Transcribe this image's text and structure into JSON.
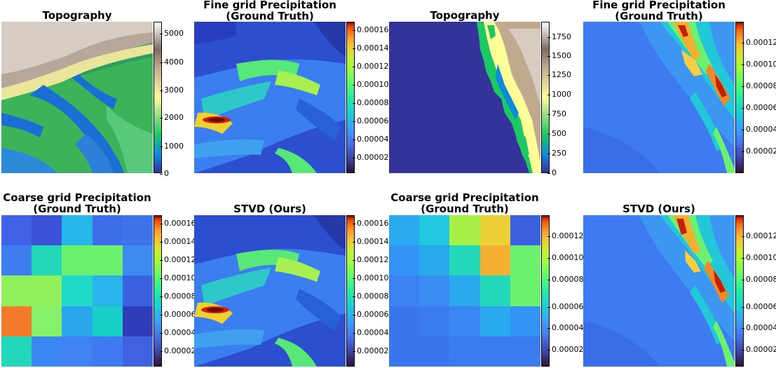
{
  "panels": {
    "topo_left": {
      "title": "Topography",
      "colorbar": {
        "colormap": "terrain",
        "ticks": [
          "5000",
          "4000",
          "3000",
          "2000",
          "1000",
          "0"
        ]
      }
    },
    "fine_left": {
      "title_line1": "Fine grid Precipitation",
      "title_line2": "(Ground Truth)",
      "colorbar": {
        "colormap": "turbo",
        "ticks": [
          "0.00016",
          "0.00014",
          "0.00012",
          "0.00010",
          "0.00008",
          "0.00006",
          "0.00004",
          "0.00002"
        ]
      }
    },
    "topo_right": {
      "title": "Topography",
      "colorbar": {
        "colormap": "terrain",
        "ticks": [
          "1750",
          "1500",
          "1250",
          "1000",
          "750",
          "500",
          "250",
          "0"
        ]
      }
    },
    "fine_right": {
      "title_line1": "Fine grid Precipitation",
      "title_line2": "(Ground Truth)",
      "colorbar": {
        "colormap": "turbo",
        "ticks": [
          "0.00012",
          "0.00010",
          "0.00008",
          "0.00006",
          "0.00004",
          "0.00002"
        ]
      }
    },
    "coarse_left": {
      "title_line1": "Coarse grid Precipitation",
      "title_line2": "(Ground Truth)",
      "colorbar": {
        "colormap": "turbo",
        "ticks": [
          "0.00016",
          "0.00014",
          "0.00012",
          "0.00010",
          "0.00008",
          "0.00006",
          "0.00004",
          "0.00002"
        ]
      },
      "grid_colors": [
        [
          "#3f62e6",
          "#3a52d8",
          "#27b6e8",
          "#3d6de8",
          "#3f73ea"
        ],
        [
          "#3f7ef0",
          "#22d8b8",
          "#6cf070",
          "#6cf070",
          "#3c8cf0"
        ],
        [
          "#8ef05a",
          "#8ef05a",
          "#20d8c8",
          "#28b4ea",
          "#3a62e0"
        ],
        [
          "#f27a28",
          "#86f06a",
          "#2aa6ec",
          "#18d0c8",
          "#303cba"
        ],
        [
          "#22d8b8",
          "#3a86f2",
          "#3f82f2",
          "#3f7af0",
          "#3e62e0"
        ]
      ]
    },
    "stvd_left": {
      "title": "STVD (Ours)",
      "colorbar": {
        "colormap": "turbo",
        "ticks": [
          "0.00016",
          "0.00014",
          "0.00012",
          "0.00010",
          "0.00008",
          "0.00006",
          "0.00004",
          "0.00002"
        ]
      }
    },
    "coarse_right": {
      "title_line1": "Coarse grid Precipitation",
      "title_line2": "(Ground Truth)",
      "colorbar": {
        "colormap": "turbo",
        "ticks": [
          "0.00012",
          "0.00010",
          "0.00008",
          "0.00006",
          "0.00004",
          "0.00002"
        ]
      },
      "grid_colors": [
        [
          "#2aaaf0",
          "#22c8e0",
          "#a8f048",
          "#ecd038",
          "#3a62e0"
        ],
        [
          "#3294f4",
          "#2aa8ee",
          "#22d8b8",
          "#f4b030",
          "#6cf070"
        ],
        [
          "#3a82f2",
          "#3a8cf4",
          "#2aa8ee",
          "#22d8b8",
          "#6cf070"
        ],
        [
          "#3a76ee",
          "#3a7cf0",
          "#3a86f2",
          "#2aa8ee",
          "#3294f4"
        ],
        [
          "#3a76ee",
          "#3a76ee",
          "#3a7cf0",
          "#3a7cf0",
          "#3a7cf0"
        ]
      ]
    },
    "stvd_right": {
      "title": "STVD (Ours)",
      "colorbar": {
        "colormap": "turbo",
        "ticks": [
          "0.00012",
          "0.00010",
          "0.00008",
          "0.00006",
          "0.00004",
          "0.00002"
        ]
      }
    }
  }
}
